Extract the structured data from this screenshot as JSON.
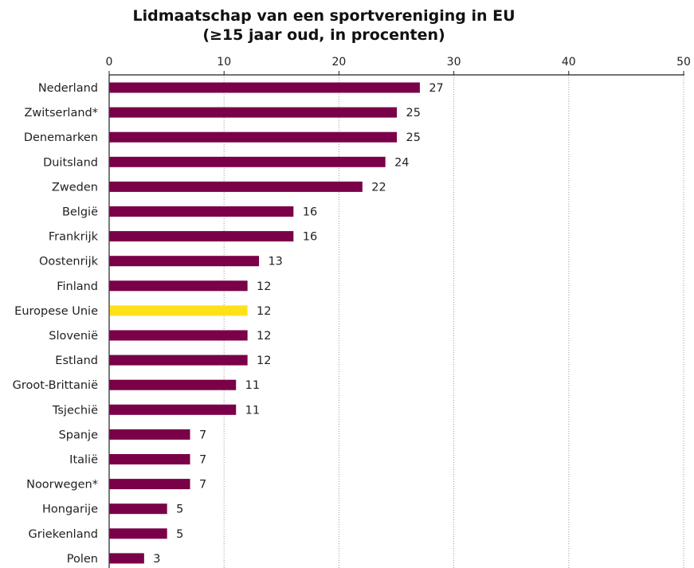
{
  "chart_data": {
    "type": "bar",
    "orientation": "horizontal",
    "title": "Lidmaatschap van een sportvereniging in EU",
    "subtitle": "(≥15 jaar oud, in procenten)",
    "categories": [
      "Nederland",
      "Zwitserland*",
      "Denemarken",
      "Duitsland",
      "Zweden",
      "België",
      "Frankrijk",
      "Oostenrijk",
      "Finland",
      "Europese Unie",
      "Slovenië",
      "Estland",
      "Groot-Brittanië",
      "Tsjechië",
      "Spanje",
      "Italië",
      "Noorwegen*",
      "Hongarije",
      "Griekenland",
      "Polen"
    ],
    "values": [
      27,
      25,
      25,
      24,
      22,
      16,
      16,
      13,
      12,
      12,
      12,
      12,
      11,
      11,
      7,
      7,
      7,
      5,
      5,
      3
    ],
    "highlight": "Europese Unie",
    "xlim": [
      0,
      50
    ],
    "xticks": [
      0,
      10,
      20,
      30,
      40,
      50
    ],
    "x_axis_position": "top",
    "grid": "vertical dotted",
    "colors": {
      "bar": "#7a0048",
      "highlight": "#ffe11a"
    }
  }
}
